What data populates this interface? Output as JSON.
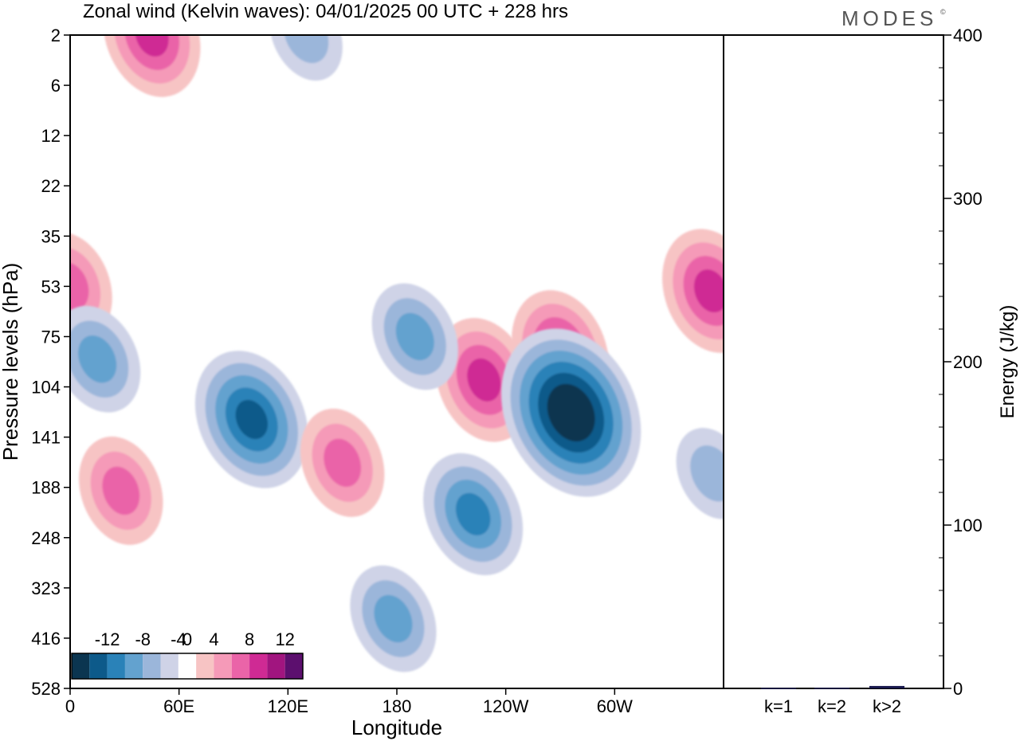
{
  "header": {
    "title": "Zonal wind (Kelvin waves):  04/01/2025  00 UTC  + 228 hrs",
    "brand": "MODES",
    "brand_mark": "©"
  },
  "colors": {
    "frame": "#000000",
    "background": "#ffffff",
    "bar_fill": "#1a1a4e"
  },
  "chart_data": [
    {
      "type": "heatmap",
      "title": "Zonal wind (Kelvin waves):  04/01/2025  00 UTC  + 228 hrs",
      "xlabel": "Longitude",
      "ylabel": "Pressure levels (hPa)",
      "x_ticks": [
        "0",
        "60E",
        "120E",
        "180",
        "120W",
        "60W"
      ],
      "y_ticks": [
        "2",
        "6",
        "12",
        "22",
        "35",
        "53",
        "75",
        "104",
        "141",
        "188",
        "248",
        "323",
        "416",
        "528"
      ],
      "colorbar": {
        "labels": [
          "-12",
          "-8",
          "-4",
          "0",
          "4",
          "8",
          "12"
        ],
        "levels": [
          -14,
          -12,
          -10,
          -8,
          -6,
          -4,
          -2,
          2,
          4,
          6,
          8,
          10,
          12,
          14
        ],
        "colors": [
          "#0b3550",
          "#0d5a8a",
          "#2a82b8",
          "#63a2cf",
          "#9bb6da",
          "#cfd3e7",
          "#ffffff",
          "#f7c4c4",
          "#f59ab8",
          "#ea64a8",
          "#cf2a94",
          "#a1157f",
          "#5c0f6e"
        ]
      },
      "features": [
        {
          "sign": "positive",
          "max": 8,
          "lon": 45,
          "level": "2"
        },
        {
          "sign": "negative",
          "max": 4,
          "lon": 130,
          "level": "2"
        },
        {
          "sign": "positive",
          "max": 6,
          "lon": 0,
          "level": "53"
        },
        {
          "sign": "negative",
          "max": 6,
          "lon": 15,
          "level": "88"
        },
        {
          "sign": "negative",
          "max": 10,
          "lon": 100,
          "level": "128"
        },
        {
          "sign": "positive",
          "max": 6,
          "lon": 150,
          "level": "165"
        },
        {
          "sign": "positive",
          "max": 8,
          "lon": 228,
          "level": "100"
        },
        {
          "sign": "positive",
          "max": 8,
          "lon": 270,
          "level": "84"
        },
        {
          "sign": "negative",
          "max": 14,
          "lon": 276,
          "level": "123"
        },
        {
          "sign": "negative",
          "max": 8,
          "lon": 222,
          "level": "220"
        },
        {
          "sign": "negative",
          "max": 6,
          "lon": 178,
          "level": "380"
        },
        {
          "sign": "positive",
          "max": 6,
          "lon": 28,
          "level": "192"
        },
        {
          "sign": "positive",
          "max": 8,
          "lon": 353,
          "level": "55"
        },
        {
          "sign": "negative",
          "max": 4,
          "lon": 354,
          "level": "175"
        },
        {
          "sign": "negative",
          "max": 6,
          "lon": 190,
          "level": "75"
        }
      ]
    },
    {
      "type": "bar",
      "categories": [
        "k=1",
        "k=2",
        "k>2"
      ],
      "values": [
        0.3,
        0.4,
        1.5
      ],
      "ylabel": "Energy (J/kg)",
      "ylim": [
        0,
        400
      ],
      "y_ticks": [
        "0",
        "100",
        "200",
        "300",
        "400"
      ]
    }
  ]
}
